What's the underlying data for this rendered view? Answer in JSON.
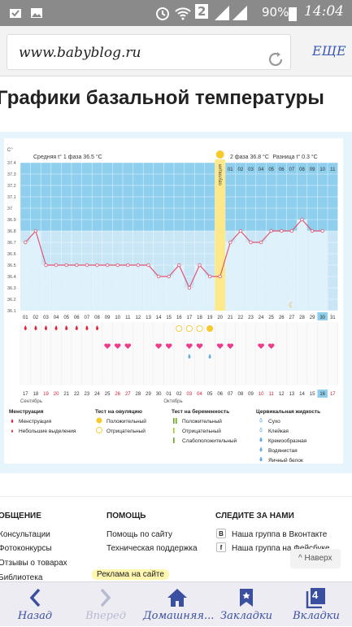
{
  "status": {
    "battery": "90%",
    "time": "14:04",
    "badge": "2"
  },
  "browser": {
    "url": "www.babyblog.ru",
    "more_label": "ЕЩЕ"
  },
  "page": {
    "title": "Графики базальной температуры"
  },
  "chart_data": {
    "type": "line",
    "yunit": "C°",
    "yticks": [
      "37.4",
      "37.3",
      "37.2",
      "37.1",
      "37",
      "36.9",
      "36.8",
      "36.7",
      "36.6",
      "36.5",
      "36.4",
      "36.3",
      "36.2",
      "36.1"
    ],
    "ylim": [
      36.1,
      37.4
    ],
    "phase1_label": "Средняя t° 1 фаза  36.5 °C",
    "phase2_label": "2 фаза  36.8 °C",
    "diff_label": "Разница t° 0.3 °C",
    "ovulation_label": "овуляция",
    "cycle_days": [
      "01",
      "02",
      "03",
      "04",
      "05",
      "06",
      "07",
      "08",
      "09",
      "10",
      "11",
      "12",
      "13",
      "14",
      "15",
      "16",
      "17",
      "18",
      "19",
      "20",
      "21",
      "22",
      "23",
      "24",
      "25",
      "26",
      "27",
      "28",
      "29",
      "30",
      "31"
    ],
    "top_days": [
      "01",
      "02",
      "03",
      "04",
      "05",
      "06",
      "07",
      "08",
      "09",
      "10",
      "11"
    ],
    "temperatures": [
      36.7,
      36.8,
      36.5,
      36.5,
      36.5,
      36.5,
      36.5,
      36.5,
      36.5,
      36.5,
      36.5,
      36.5,
      36.5,
      36.4,
      36.4,
      36.5,
      36.3,
      36.5,
      36.4,
      36.4,
      36.7,
      36.8,
      36.7,
      36.7,
      36.8,
      36.8,
      36.8,
      36.9,
      36.8,
      36.8
    ],
    "dates": [
      "17",
      "18",
      "19",
      "20",
      "21",
      "22",
      "23",
      "24",
      "25",
      "26",
      "27",
      "28",
      "29",
      "30",
      "01",
      "02",
      "03",
      "04",
      "05",
      "06",
      "07",
      "08",
      "09",
      "10",
      "11",
      "12",
      "13",
      "14",
      "15",
      "16",
      "17"
    ],
    "month1": "Сентябрь",
    "month2": "Октябрь",
    "bleeding_days": [
      1,
      2,
      3,
      4,
      5,
      6,
      7,
      8
    ],
    "ovulation_test_days": [
      16,
      17,
      18,
      19
    ],
    "intercourse_days": [
      9,
      10,
      11,
      14,
      15,
      17,
      18,
      20,
      21,
      24,
      25
    ],
    "drop_days": [
      17,
      19
    ]
  },
  "legend": {
    "menstruation": {
      "title": "Менструация",
      "items": [
        "Менструация",
        "Небольшие выделения"
      ]
    },
    "ovulation_test": {
      "title": "Тест на овуляцию",
      "items": [
        "Положительный",
        "Отрицательный"
      ]
    },
    "pregnancy_test": {
      "title": "Тест на беременность",
      "items": [
        "Положительный",
        "Отрицательный",
        "Слабоположительный"
      ]
    },
    "cervical": {
      "title": "Цервикальная жидкость",
      "items": [
        "Сухо",
        "Клейкая",
        "Кремообразная",
        "Водянистая",
        "Яичный белок"
      ]
    },
    "bottom": [
      "Половой акт",
      "Прием лекарств",
      "Лунный календарь"
    ]
  },
  "footer": {
    "col1": {
      "title": "ОБЩЕНИЕ",
      "links": [
        "Консультации",
        "Фотоконкурсы",
        "Отзывы о товарах",
        "Библиотека"
      ]
    },
    "col2": {
      "title": "ПОМОЩЬ",
      "links": [
        "Помощь по сайту",
        "Техническая поддержка"
      ]
    },
    "col3": {
      "title": "СЛЕДИТЕ ЗА НАМИ",
      "links": [
        "Наша группа в Вконтакте",
        "Наша группа на Фейсбуке"
      ]
    },
    "ad": "Реклама на сайте",
    "back_top": "Наверх"
  },
  "nav": {
    "back": "Назад",
    "forward": "Вперед",
    "home": "Домашняя...",
    "bookmarks": "Закладки",
    "tabs": "Вкладки",
    "tabs_count": "4"
  }
}
